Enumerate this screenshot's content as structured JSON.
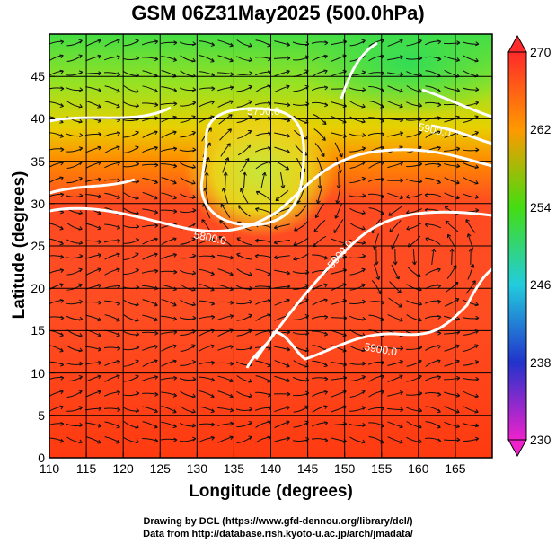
{
  "title": "GSM 06Z31May2025 (500.0hPa)",
  "xaxis": {
    "label": "Longitude (degrees)",
    "ticks": [
      "110",
      "115",
      "120",
      "125",
      "130",
      "135",
      "140",
      "145",
      "150",
      "155",
      "160",
      "165"
    ],
    "range": [
      110,
      170
    ]
  },
  "yaxis": {
    "label": "Latitude  (degrees)",
    "ticks": [
      "0",
      "5",
      "10",
      "15",
      "20",
      "25",
      "30",
      "35",
      "40",
      "45"
    ],
    "range": [
      0,
      50
    ]
  },
  "colorbar": {
    "ticks": [
      "270",
      "262",
      "254",
      "246",
      "238",
      "230"
    ],
    "range": [
      230,
      270
    ],
    "colors": [
      "#ff2a2a",
      "#ff9900",
      "#44dd11",
      "#22ccdd",
      "#2233cc",
      "#ee22cc"
    ]
  },
  "contours": {
    "labels": [
      "5700.0",
      "5800.0",
      "5900.0",
      "5900.0",
      "5900.0"
    ]
  },
  "credits": {
    "line1": "Drawing by DCL (https://www.gfd-dennou.org/library/dcl/)",
    "line2": "Data from http://database.rish.kyoto-u.ac.jp/arch/jmadata/"
  }
}
